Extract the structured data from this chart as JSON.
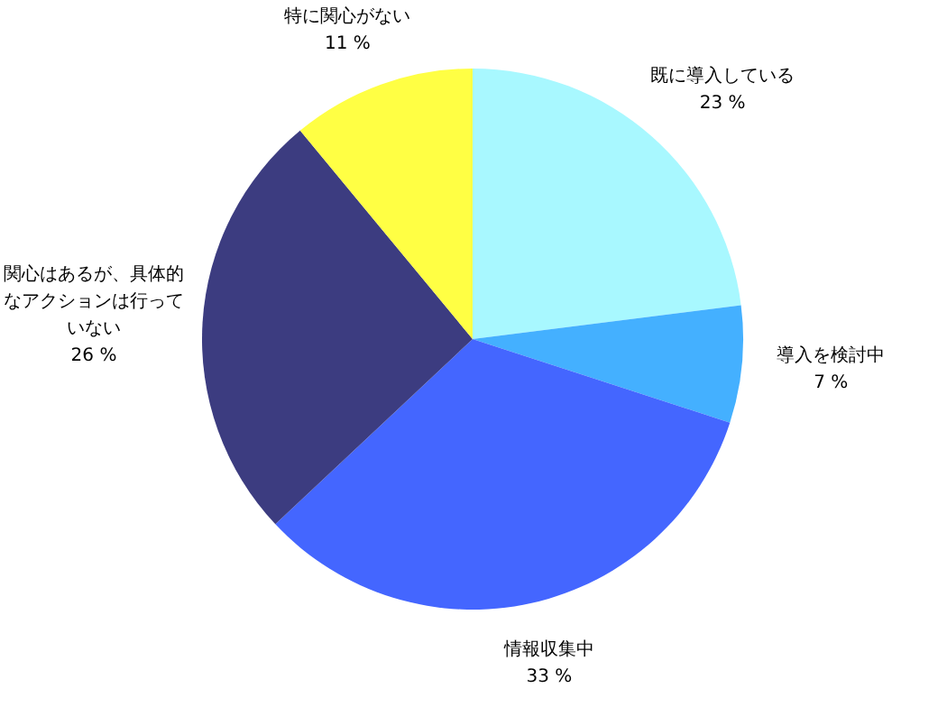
{
  "chart_data": {
    "type": "pie",
    "categories": [
      "既に導入している",
      "導入を検討中",
      "情報収集中",
      "関心はあるが、具体的なアクションは行っていない",
      "特に関心がない"
    ],
    "values": [
      23,
      7,
      33,
      26,
      11
    ],
    "value_labels": [
      "23 %",
      "7 %",
      "33 %",
      "26 %",
      "11 %"
    ],
    "colors": [
      "#a8f8ff",
      "#44b0ff",
      "#4466ff",
      "#3c3c80",
      "#ffff44"
    ]
  }
}
